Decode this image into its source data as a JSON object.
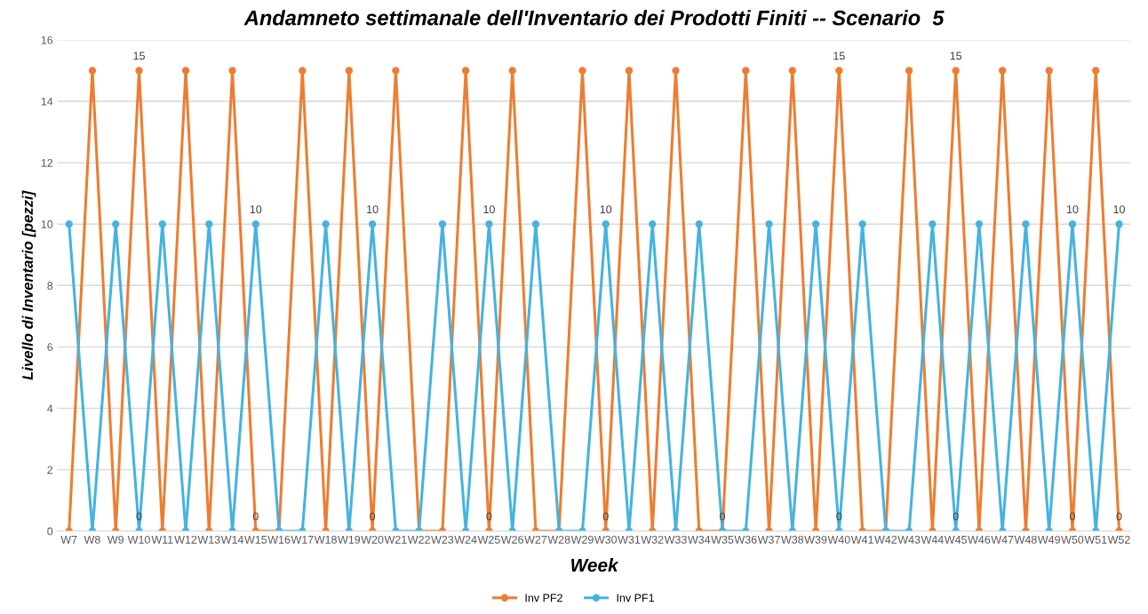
{
  "chart_data": {
    "type": "line",
    "title": "Andamneto settimanale dell'Inventario dei Prodotti Finiti -- Scenario  5",
    "xlabel": "Week",
    "ylabel": "Livello di Inventario [pezzi]",
    "categories": [
      "W7",
      "W8",
      "W9",
      "W10",
      "W11",
      "W12",
      "W13",
      "W14",
      "W15",
      "W16",
      "W17",
      "W18",
      "W19",
      "W20",
      "W21",
      "W22",
      "W23",
      "W24",
      "W25",
      "W26",
      "W27",
      "W28",
      "W29",
      "W30",
      "W31",
      "W32",
      "W33",
      "W34",
      "W35",
      "W36",
      "W37",
      "W38",
      "W39",
      "W40",
      "W41",
      "W42",
      "W43",
      "W44",
      "W45",
      "W46",
      "W47",
      "W48",
      "W49",
      "W50",
      "W51",
      "W52"
    ],
    "series": [
      {
        "name": "Inv PF2",
        "color": "#ed7d31",
        "values": [
          0,
          15,
          0,
          15,
          0,
          15,
          0,
          15,
          0,
          0,
          15,
          0,
          15,
          0,
          15,
          0,
          0,
          15,
          0,
          15,
          0,
          0,
          15,
          0,
          15,
          0,
          15,
          0,
          0,
          15,
          0,
          15,
          0,
          15,
          0,
          0,
          15,
          0,
          15,
          0,
          15,
          0,
          15,
          0,
          15,
          0
        ],
        "value_labels": [
          null,
          null,
          null,
          "15",
          null,
          null,
          null,
          null,
          "0",
          null,
          null,
          null,
          null,
          "0",
          null,
          null,
          null,
          null,
          "0",
          null,
          null,
          null,
          null,
          "0",
          null,
          null,
          null,
          null,
          "0",
          null,
          null,
          null,
          null,
          "15",
          null,
          null,
          null,
          null,
          "15",
          null,
          null,
          null,
          null,
          "0",
          null,
          "0"
        ]
      },
      {
        "name": "Inv PF1",
        "color": "#45b3e0",
        "values": [
          10,
          0,
          10,
          0,
          10,
          0,
          10,
          0,
          10,
          0,
          0,
          10,
          0,
          10,
          0,
          0,
          10,
          0,
          10,
          0,
          10,
          0,
          0,
          10,
          0,
          10,
          0,
          10,
          0,
          0,
          10,
          0,
          10,
          0,
          10,
          0,
          0,
          10,
          0,
          10,
          0,
          10,
          0,
          10,
          0,
          10
        ],
        "value_labels": [
          null,
          null,
          null,
          "0",
          null,
          null,
          null,
          null,
          "10",
          null,
          null,
          null,
          null,
          "10",
          null,
          null,
          null,
          null,
          "10",
          null,
          null,
          null,
          null,
          "10",
          null,
          null,
          null,
          null,
          null,
          null,
          null,
          null,
          null,
          "0",
          null,
          null,
          null,
          null,
          "0",
          null,
          null,
          null,
          null,
          "10",
          null,
          "10"
        ]
      }
    ],
    "ylim": [
      0,
      16
    ],
    "yticks": [
      0,
      2,
      4,
      6,
      8,
      10,
      12,
      14,
      16
    ],
    "grid": "y",
    "legend": "bottom",
    "marker": "circle",
    "line_style": "solid"
  }
}
